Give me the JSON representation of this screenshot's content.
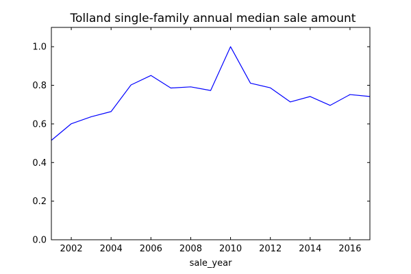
{
  "chart_data": {
    "type": "line",
    "title": "Tolland single-family annual median sale amount",
    "xlabel": "sale_year",
    "ylabel": "",
    "xlim": [
      2001,
      2017
    ],
    "ylim": [
      0.0,
      1.1
    ],
    "xticks": [
      2002,
      2004,
      2006,
      2008,
      2010,
      2012,
      2014,
      2016
    ],
    "yticks": [
      0.0,
      0.2,
      0.4,
      0.6,
      0.8,
      1.0
    ],
    "ytick_labels": [
      "0.0",
      "0.2",
      "0.4",
      "0.6",
      "0.8",
      "1.0"
    ],
    "grid": false,
    "colors": {
      "line": "#0000ff",
      "axes": "#000000",
      "background": "#ffffff"
    },
    "x": [
      2001,
      2002,
      2003,
      2004,
      2005,
      2006,
      2007,
      2008,
      2009,
      2010,
      2011,
      2012,
      2013,
      2014,
      2015,
      2016,
      2017
    ],
    "y": [
      0.515,
      0.601,
      0.637,
      0.664,
      0.802,
      0.851,
      0.786,
      0.792,
      0.773,
      1.0,
      0.811,
      0.787,
      0.714,
      0.742,
      0.696,
      0.752,
      0.742
    ]
  }
}
